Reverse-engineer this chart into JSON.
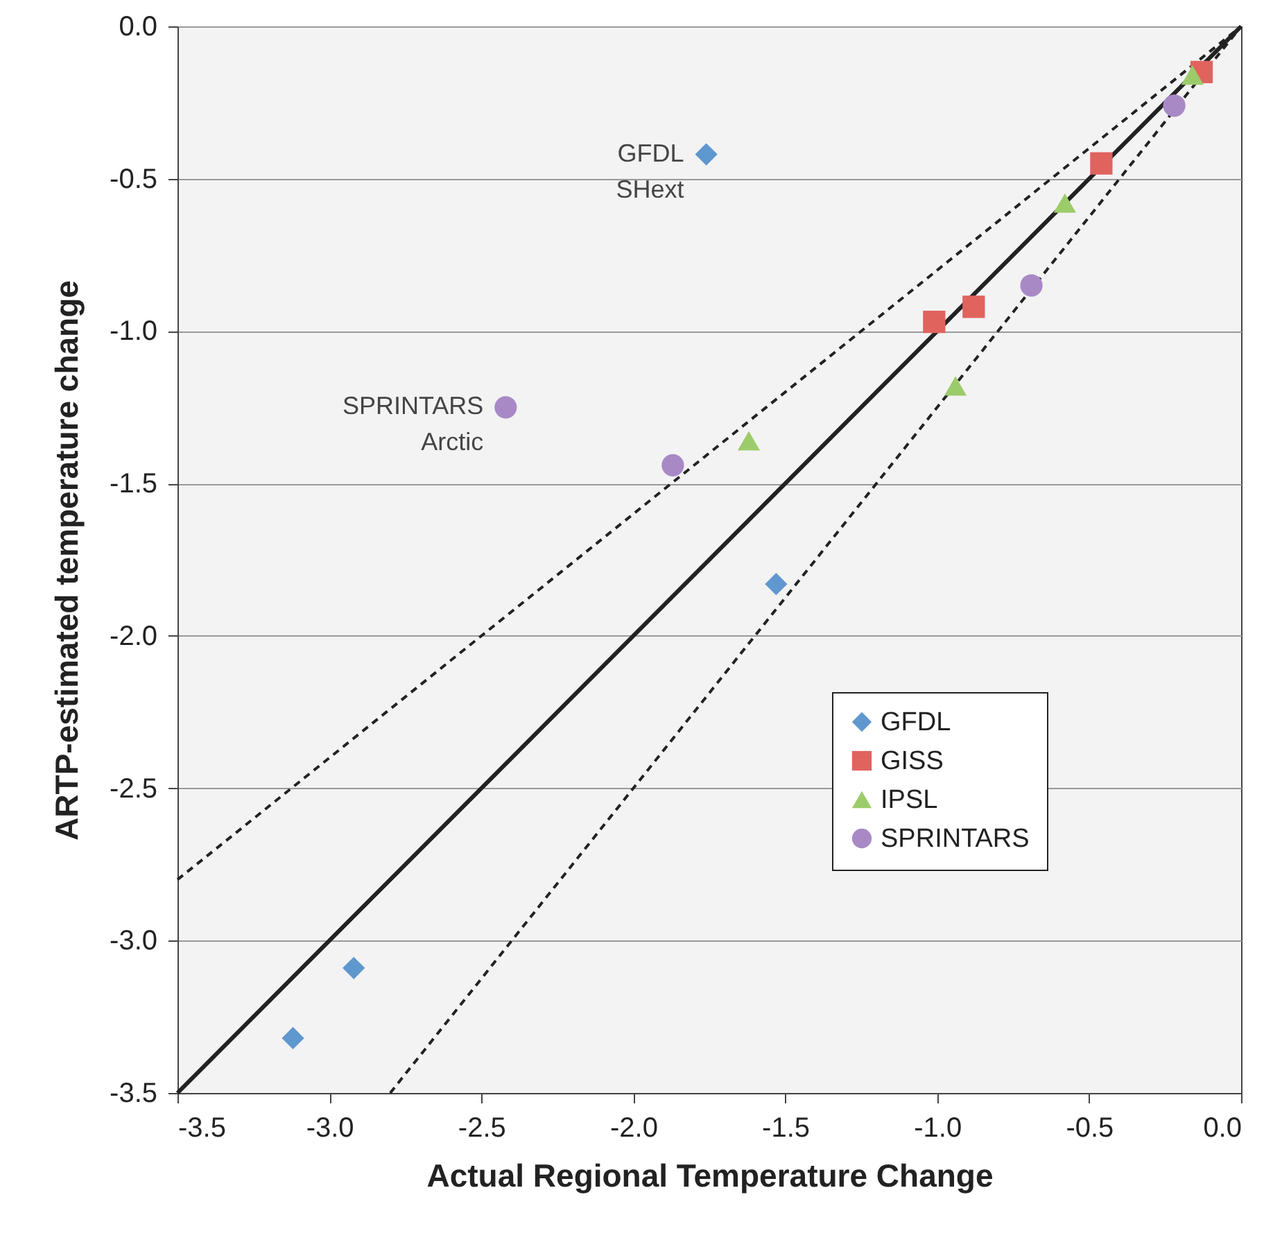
{
  "chart_data": {
    "type": "scatter",
    "xlabel": "Actual Regional Temperature Change",
    "ylabel": "ARTP-estimated temperature change",
    "xlim": [
      -3.5,
      0
    ],
    "ylim": [
      -3.5,
      0
    ],
    "xticks": [
      {
        "value": -3.5,
        "label": "-3.5"
      },
      {
        "value": -3,
        "label": "-3.0"
      },
      {
        "value": -2.5,
        "label": "-2.5"
      },
      {
        "value": -2,
        "label": "-2.0"
      },
      {
        "value": -1.5,
        "label": "-1.5"
      },
      {
        "value": -1,
        "label": "-1.0"
      },
      {
        "value": -0.5,
        "label": "-0.5"
      },
      {
        "value": 0,
        "label": "0.0"
      }
    ],
    "yticks": [
      {
        "value": -3.5,
        "label": "-3.5"
      },
      {
        "value": -3,
        "label": "-3.0"
      },
      {
        "value": -2.5,
        "label": "-2.5"
      },
      {
        "value": -2,
        "label": "-2.0"
      },
      {
        "value": -1.5,
        "label": "-1.5"
      },
      {
        "value": -1,
        "label": "-1.0"
      },
      {
        "value": -0.5,
        "label": "-0.5"
      },
      {
        "value": 0,
        "label": "0.0"
      }
    ],
    "grid": "y",
    "legend": "bottom right",
    "series": [
      {
        "name": "GFDL",
        "color": "#5f97cf",
        "marker": "diamond",
        "x": [
          -1.76,
          -1.53,
          -2.92,
          -3.12
        ],
        "values": [
          -0.42,
          -1.83,
          -3.09,
          -3.32
        ]
      },
      {
        "name": "GISS",
        "color": "#e0635e",
        "marker": "square",
        "x": [
          -0.46,
          -0.13,
          -1.01,
          -0.88
        ],
        "values": [
          -0.45,
          -0.15,
          -0.97,
          -0.92
        ]
      },
      {
        "name": "IPSL",
        "color": "#9ccc6a",
        "marker": "triangle",
        "x": [
          -0.16,
          -0.58,
          -0.94,
          -1.62
        ],
        "values": [
          -0.16,
          -0.58,
          -1.18,
          -1.36
        ]
      },
      {
        "name": "SPRINTARS",
        "color": "#a889c6",
        "marker": "circle",
        "x": [
          -0.22,
          -0.69,
          -1.87,
          -2.42
        ],
        "values": [
          -0.26,
          -0.85,
          -1.44,
          -1.25
        ]
      },
      {
        "type": "line",
        "color": "#222222",
        "line_style": "solid",
        "marker": "none",
        "x": [
          -3.5,
          0
        ],
        "values": [
          -3.5,
          0
        ]
      },
      {
        "type": "line",
        "color": "#222222",
        "line_style": "dashed",
        "marker": "none",
        "x": [
          -3.5,
          0
        ],
        "values": [
          -2.8,
          0
        ]
      },
      {
        "type": "line",
        "color": "#222222",
        "line_style": "dashed",
        "marker": "none",
        "x": [
          -2.8,
          0
        ],
        "values": [
          -3.5,
          0
        ]
      }
    ],
    "annotations": [
      {
        "text": "GFDL\nSHext",
        "x": -1.76,
        "y": -0.42
      },
      {
        "text": "SPRINTARS\nArctic",
        "x": -2.42,
        "y": -1.25
      }
    ]
  }
}
